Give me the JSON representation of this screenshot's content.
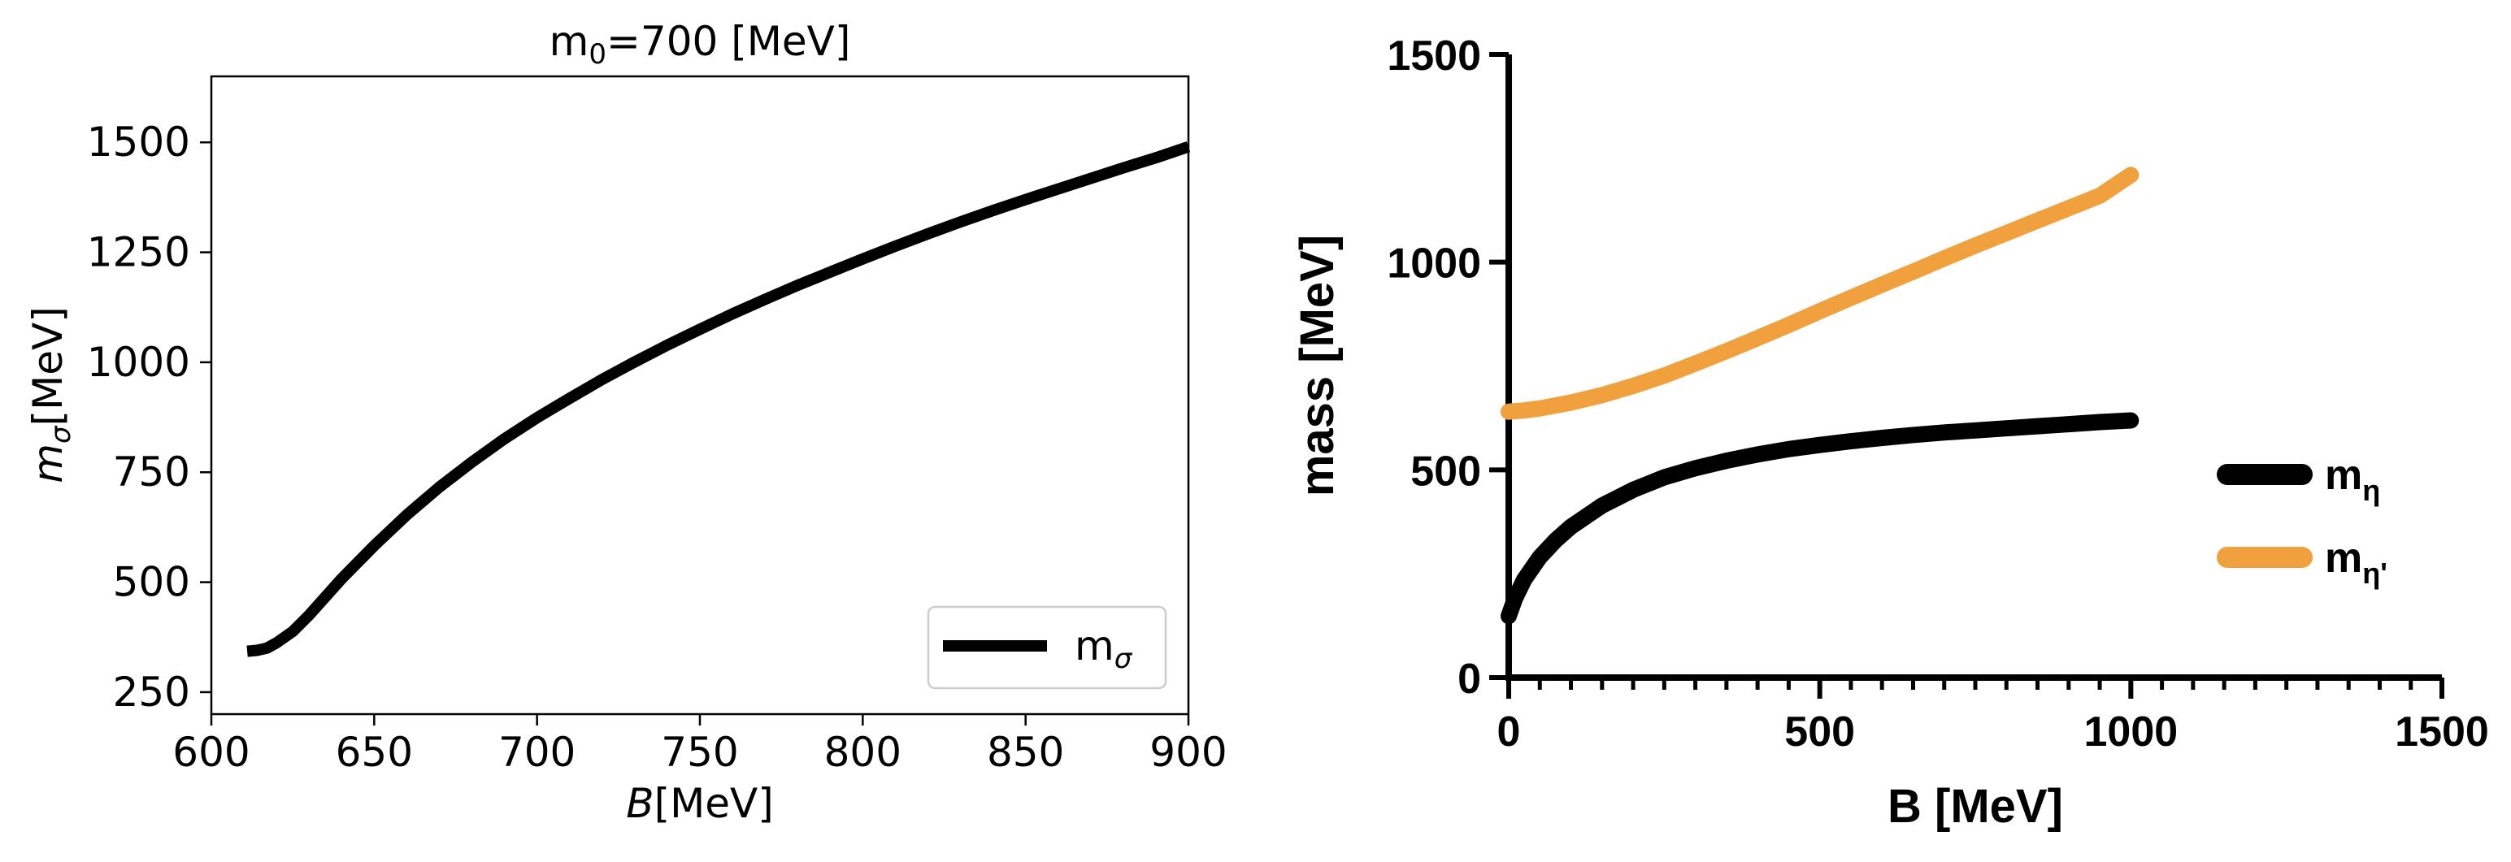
{
  "chart_data": [
    {
      "type": "line",
      "title_prefix": "m",
      "title_sub": "0",
      "title_suffix": "=700 [MeV]",
      "xlabel_italic": "B",
      "xlabel_rest": "[MeV]",
      "ylabel_italic": "m",
      "ylabel_sub": "σ",
      "ylabel_rest": "[MeV]",
      "xlim": [
        600,
        900
      ],
      "ylim": [
        200,
        1650
      ],
      "xticks": [
        600,
        650,
        700,
        750,
        800,
        850,
        900
      ],
      "yticks": [
        250,
        500,
        750,
        1000,
        1250,
        1500
      ],
      "grid": false,
      "legend_position": "bottom-right",
      "series": [
        {
          "name": "m",
          "name_sub": "σ",
          "color": "#000000",
          "x": [
            611,
            614,
            617,
            620,
            625,
            630,
            640,
            650,
            660,
            670,
            680,
            690,
            700,
            710,
            720,
            730,
            740,
            750,
            760,
            770,
            780,
            790,
            800,
            810,
            820,
            830,
            840,
            850,
            860,
            870,
            880,
            890,
            900
          ],
          "y": [
            343,
            345,
            350,
            362,
            388,
            425,
            508,
            583,
            653,
            716,
            773,
            826,
            874,
            918,
            961,
            1001,
            1039,
            1075,
            1110,
            1143,
            1175,
            1205,
            1235,
            1264,
            1292,
            1319,
            1345,
            1370,
            1394,
            1418,
            1442,
            1465,
            1490
          ]
        }
      ]
    },
    {
      "type": "line",
      "xlabel": "B [MeV]",
      "ylabel": "mass [MeV]",
      "xlim": [
        0,
        1500
      ],
      "ylim": [
        0,
        1500
      ],
      "xticks": [
        0,
        500,
        1000,
        1500
      ],
      "yticks": [
        0,
        500,
        1000,
        1500
      ],
      "grid": false,
      "legend_position": "right",
      "series": [
        {
          "name": "m",
          "name_sub": "η",
          "color": "#000000",
          "x": [
            0,
            10,
            25,
            50,
            75,
            100,
            150,
            200,
            250,
            300,
            350,
            400,
            450,
            500,
            550,
            600,
            650,
            700,
            750,
            800,
            850,
            900,
            950,
            1000
          ],
          "y": [
            148,
            190,
            236,
            290,
            330,
            363,
            414,
            452,
            482,
            504,
            522,
            537,
            550,
            560,
            569,
            577,
            584,
            590,
            595,
            600,
            605,
            610,
            615,
            619
          ]
        },
        {
          "name": "m",
          "name_sub": "η'",
          "color": "#f0a03c",
          "x": [
            0,
            25,
            50,
            100,
            150,
            200,
            250,
            300,
            350,
            400,
            450,
            500,
            550,
            600,
            650,
            700,
            750,
            800,
            850,
            900,
            950,
            1000
          ],
          "y": [
            640,
            643,
            648,
            662,
            680,
            702,
            727,
            756,
            786,
            817,
            849,
            882,
            914,
            946,
            977,
            1009,
            1040,
            1070,
            1100,
            1130,
            1160,
            1210
          ]
        }
      ]
    }
  ]
}
